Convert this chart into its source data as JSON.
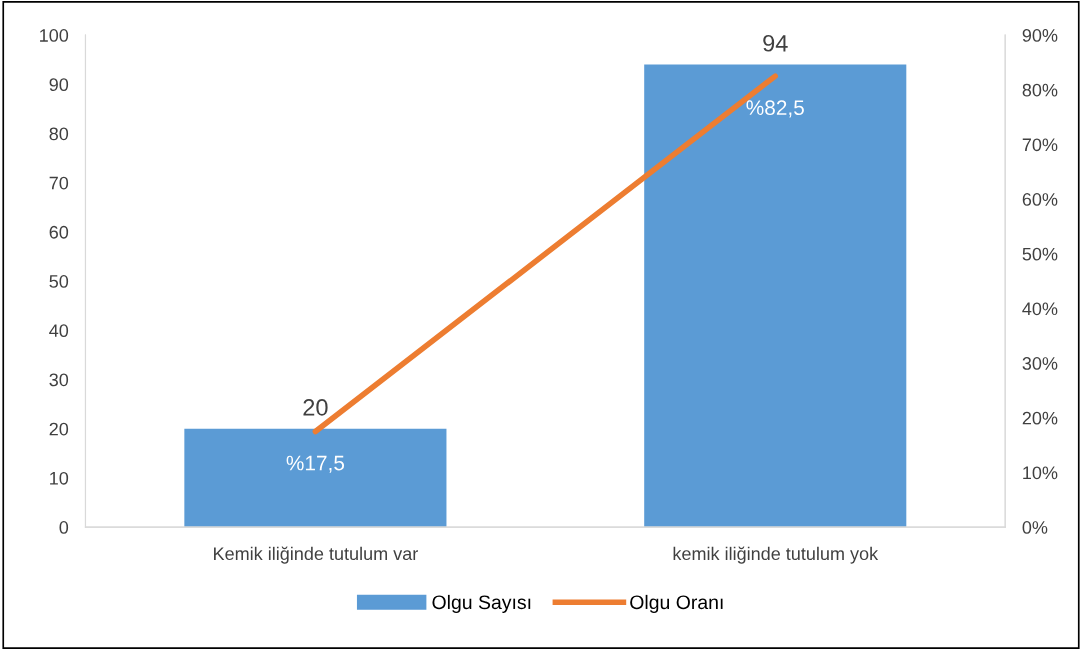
{
  "chart_data": {
    "type": "bar",
    "categories": [
      "Kemik iliğinde tutulum var",
      "kemik iliğinde tutulum yok"
    ],
    "series": [
      {
        "name": "Olgu Sayısı",
        "color": "#5b9bd5",
        "values": [
          20,
          94
        ],
        "value_labels": [
          "20",
          "94"
        ]
      },
      {
        "name": "Olgu Oranı",
        "type": "line",
        "axis": "y2",
        "color": "#ed7d31",
        "values": [
          17.5,
          82.5
        ],
        "value_labels": [
          "%17,5",
          "%82,5"
        ]
      }
    ],
    "ylim": [
      0,
      100
    ],
    "yticks": [
      0,
      10,
      20,
      30,
      40,
      50,
      60,
      70,
      80,
      90,
      100
    ],
    "y2lim": [
      0,
      90
    ],
    "y2ticks": [
      {
        "value": 0,
        "label": "0%"
      },
      {
        "value": 10,
        "label": "10%"
      },
      {
        "value": 20,
        "label": "20%"
      },
      {
        "value": 30,
        "label": "30%"
      },
      {
        "value": 40,
        "label": "40%"
      },
      {
        "value": 50,
        "label": "50%"
      },
      {
        "value": 60,
        "label": "60%"
      },
      {
        "value": 70,
        "label": "70%"
      },
      {
        "value": 80,
        "label": "80%"
      },
      {
        "value": 90,
        "label": "90%"
      }
    ],
    "grid": false,
    "legend": "bottom",
    "marker": "none",
    "line_style": "solid"
  }
}
